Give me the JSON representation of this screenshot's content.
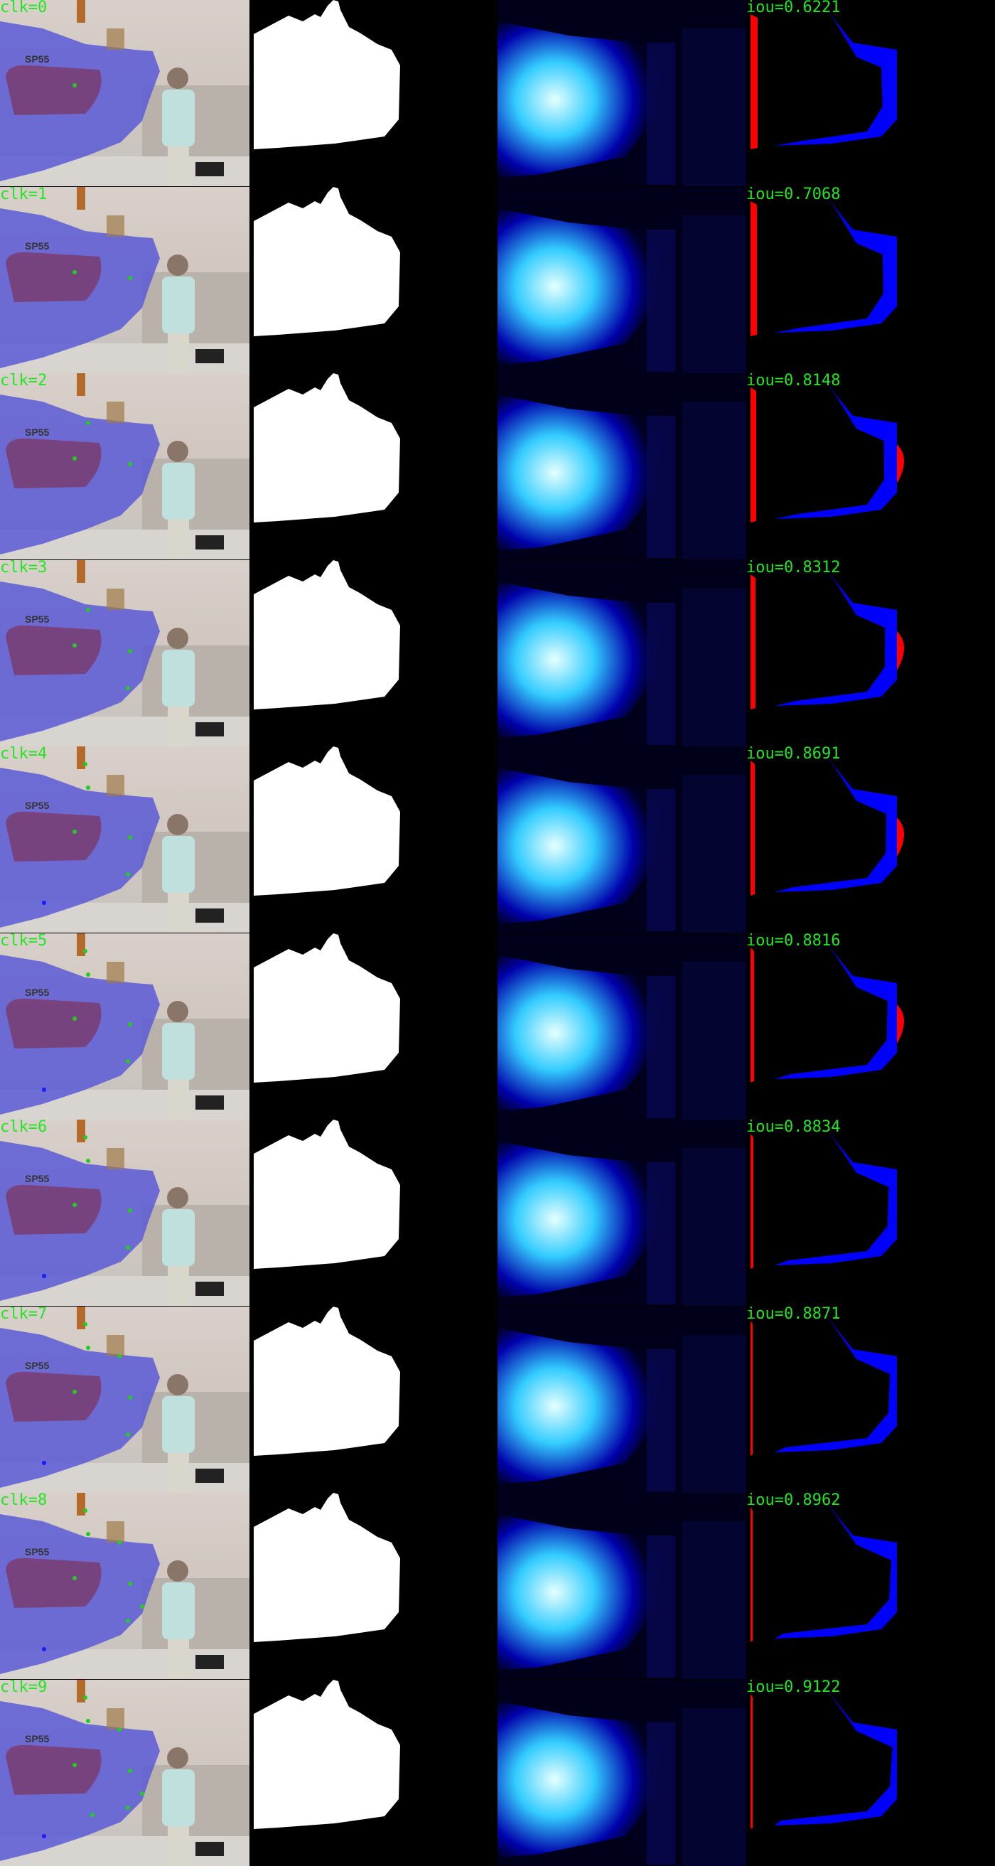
{
  "rows": [
    {
      "click_label": "clk=0",
      "iou_label": "iou=0.6221"
    },
    {
      "click_label": "clk=1",
      "iou_label": "iou=0.7068"
    },
    {
      "click_label": "clk=2",
      "iou_label": "iou=0.8148"
    },
    {
      "click_label": "clk=3",
      "iou_label": "iou=0.8312"
    },
    {
      "click_label": "clk=4",
      "iou_label": "iou=0.8691"
    },
    {
      "click_label": "clk=5",
      "iou_label": "iou=0.8816"
    },
    {
      "click_label": "clk=6",
      "iou_label": "iou=0.8834"
    },
    {
      "click_label": "clk=7",
      "iou_label": "iou=0.8871"
    },
    {
      "click_label": "clk=8",
      "iou_label": "iou=0.8962"
    },
    {
      "click_label": "clk=9",
      "iou_label": "iou=0.9122"
    }
  ],
  "hull_text": "SP55",
  "colors": {
    "label_green": "#22e622",
    "overlay_blue": "#5a5ad6",
    "fn_blue": "#0000ff",
    "fp_red": "#ff0000",
    "click_positive": "#22cc22",
    "click_negative": "#1a1aff",
    "mask_white": "#ffffff"
  }
}
